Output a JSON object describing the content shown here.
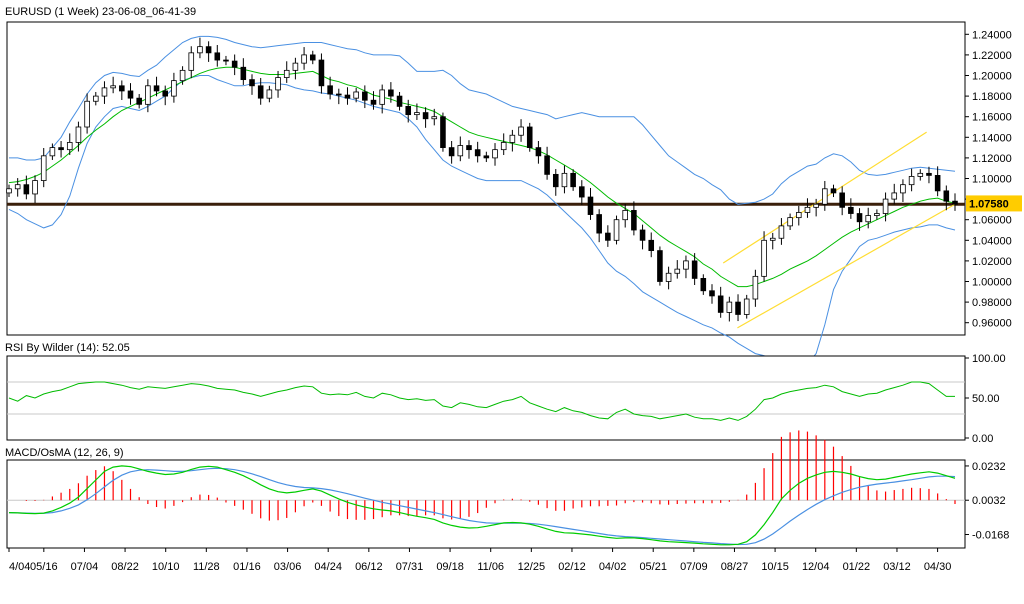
{
  "chart_data": [
    {
      "type": "candlestick",
      "title": "EURUSD (1 Week) 23-06-08_06-41-39",
      "ylim": [
        0.95,
        1.25
      ],
      "y_ticks": [
        "1.24000",
        "1.22000",
        "1.20000",
        "1.18000",
        "1.16000",
        "1.14000",
        "1.12000",
        "1.10000",
        "1.08000",
        "1.06000",
        "1.04000",
        "1.02000",
        "1.00000",
        "0.98000",
        "0.96000"
      ],
      "y_tick_values": [
        1.24,
        1.22,
        1.2,
        1.18,
        1.16,
        1.14,
        1.12,
        1.1,
        1.08,
        1.06,
        1.04,
        1.02,
        1.0,
        0.98,
        0.96
      ],
      "last_price_label": "1.07580",
      "last_price": 1.0758,
      "horizontal_line": 1.075,
      "closes": [
        1.09,
        1.094,
        1.085,
        1.098,
        1.122,
        1.13,
        1.128,
        1.135,
        1.15,
        1.175,
        1.18,
        1.188,
        1.19,
        1.185,
        1.178,
        1.172,
        1.19,
        1.185,
        1.18,
        1.195,
        1.205,
        1.222,
        1.228,
        1.222,
        1.215,
        1.214,
        1.208,
        1.196,
        1.19,
        1.178,
        1.186,
        1.198,
        1.205,
        1.212,
        1.22,
        1.215,
        1.19,
        1.182,
        1.181,
        1.178,
        1.184,
        1.176,
        1.172,
        1.186,
        1.18,
        1.17,
        1.162,
        1.164,
        1.158,
        1.16,
        1.13,
        1.122,
        1.132,
        1.128,
        1.122,
        1.12,
        1.128,
        1.135,
        1.142,
        1.15,
        1.13,
        1.122,
        1.104,
        1.092,
        1.105,
        1.092,
        1.082,
        1.065,
        1.047,
        1.04,
        1.06,
        1.069,
        1.05,
        1.04,
        1.03,
        1.0,
        1.008,
        1.012,
        1.02,
        1.003,
        0.991,
        0.986,
        0.97,
        0.98,
        0.968,
        0.983,
        1.005,
        1.04,
        1.042,
        1.054,
        1.062,
        1.067,
        1.072,
        1.075,
        1.09,
        1.086,
        1.072,
        1.066,
        1.058,
        1.064,
        1.066,
        1.08,
        1.086,
        1.094,
        1.102,
        1.105,
        1.103,
        1.088,
        1.078,
        1.075
      ],
      "bb_mid": [
        1.096,
        1.097,
        1.099,
        1.102,
        1.106,
        1.112,
        1.118,
        1.125,
        1.132,
        1.14,
        1.147,
        1.153,
        1.16,
        1.166,
        1.17,
        1.174,
        1.178,
        1.182,
        1.186,
        1.19,
        1.194,
        1.198,
        1.202,
        1.205,
        1.207,
        1.208,
        1.208,
        1.206,
        1.204,
        1.202,
        1.201,
        1.201,
        1.201,
        1.202,
        1.203,
        1.204,
        1.2,
        1.196,
        1.194,
        1.191,
        1.189,
        1.185,
        1.181,
        1.179,
        1.177,
        1.174,
        1.172,
        1.17,
        1.168,
        1.165,
        1.16,
        1.155,
        1.15,
        1.145,
        1.142,
        1.14,
        1.138,
        1.136,
        1.134,
        1.132,
        1.13,
        1.127,
        1.123,
        1.118,
        1.113,
        1.108,
        1.102,
        1.096,
        1.089,
        1.082,
        1.076,
        1.071,
        1.066,
        1.059,
        1.052,
        1.045,
        1.039,
        1.034,
        1.029,
        1.024,
        1.017,
        1.012,
        1.005,
        1.0,
        0.995,
        0.995,
        0.997,
        1.0,
        1.003,
        1.007,
        1.012,
        1.016,
        1.02,
        1.025,
        1.031,
        1.037,
        1.043,
        1.048,
        1.052,
        1.056,
        1.06,
        1.064,
        1.068,
        1.072,
        1.075,
        1.078,
        1.08,
        1.081,
        1.078,
        1.076
      ],
      "bb_up": [
        1.12,
        1.12,
        1.118,
        1.118,
        1.12,
        1.13,
        1.14,
        1.155,
        1.168,
        1.182,
        1.193,
        1.2,
        1.203,
        1.202,
        1.2,
        1.199,
        1.205,
        1.21,
        1.218,
        1.225,
        1.232,
        1.236,
        1.238,
        1.238,
        1.237,
        1.235,
        1.232,
        1.23,
        1.228,
        1.227,
        1.228,
        1.229,
        1.23,
        1.231,
        1.232,
        1.232,
        1.232,
        1.23,
        1.228,
        1.226,
        1.225,
        1.222,
        1.22,
        1.22,
        1.22,
        1.219,
        1.212,
        1.204,
        1.204,
        1.204,
        1.205,
        1.2,
        1.192,
        1.186,
        1.184,
        1.182,
        1.178,
        1.174,
        1.17,
        1.168,
        1.166,
        1.164,
        1.162,
        1.158,
        1.16,
        1.162,
        1.164,
        1.162,
        1.16,
        1.16,
        1.16,
        1.16,
        1.16,
        1.152,
        1.142,
        1.132,
        1.122,
        1.116,
        1.11,
        1.104,
        1.1,
        1.094,
        1.089,
        1.08,
        1.075,
        1.076,
        1.077,
        1.08,
        1.085,
        1.095,
        1.102,
        1.107,
        1.112,
        1.114,
        1.12,
        1.124,
        1.122,
        1.116,
        1.108,
        1.104,
        1.103,
        1.104,
        1.106,
        1.108,
        1.11,
        1.111,
        1.11,
        1.109,
        1.108,
        1.107
      ],
      "bb_low": [
        1.07,
        1.066,
        1.06,
        1.056,
        1.052,
        1.055,
        1.065,
        1.083,
        1.11,
        1.134,
        1.15,
        1.16,
        1.168,
        1.17,
        1.168,
        1.166,
        1.17,
        1.175,
        1.18,
        1.188,
        1.195,
        1.198,
        1.2,
        1.2,
        1.196,
        1.193,
        1.19,
        1.19,
        1.192,
        1.193,
        1.193,
        1.192,
        1.191,
        1.188,
        1.186,
        1.185,
        1.183,
        1.182,
        1.18,
        1.178,
        1.176,
        1.173,
        1.17,
        1.168,
        1.166,
        1.164,
        1.158,
        1.15,
        1.138,
        1.128,
        1.118,
        1.112,
        1.108,
        1.104,
        1.1,
        1.098,
        1.098,
        1.098,
        1.098,
        1.098,
        1.094,
        1.09,
        1.084,
        1.076,
        1.068,
        1.06,
        1.052,
        1.042,
        1.03,
        1.018,
        1.01,
        1.005,
        0.998,
        0.99,
        0.985,
        0.98,
        0.975,
        0.97,
        0.966,
        0.962,
        0.958,
        0.955,
        0.95,
        0.946,
        0.94,
        0.935,
        0.93,
        0.928,
        0.926,
        0.922,
        0.92,
        0.918,
        0.92,
        0.93,
        0.958,
        0.992,
        1.01,
        1.022,
        1.034,
        1.04,
        1.042,
        1.045,
        1.048,
        1.05,
        1.052,
        1.053,
        1.055,
        1.055,
        1.052,
        1.05
      ],
      "channel": {
        "upper": [
          [
            1.018,
            1.145
          ],
          [
            1.072,
            1.145
          ]
        ],
        "lower": [
          [
            0.955,
            1.075
          ],
          [
            0.958,
            1.06
          ]
        ]
      }
    },
    {
      "type": "line",
      "title": "RSI By Wilder (14): 52.05",
      "ylim": [
        0,
        100
      ],
      "y_ticks": [
        "100.00",
        "50.00",
        "0.00"
      ],
      "y_tick_values": [
        100,
        50,
        0
      ],
      "levels": [
        70,
        30
      ],
      "values": [
        50,
        46,
        53,
        50,
        55,
        58,
        60,
        64,
        68,
        69,
        70,
        70,
        68,
        66,
        63,
        61,
        64,
        63,
        62,
        64,
        66,
        68,
        67,
        65,
        62,
        61,
        60,
        57,
        55,
        52,
        55,
        58,
        60,
        63,
        65,
        64,
        56,
        54,
        55,
        54,
        57,
        52,
        50,
        56,
        54,
        50,
        48,
        49,
        47,
        48,
        40,
        38,
        44,
        42,
        39,
        38,
        42,
        46,
        48,
        52,
        44,
        40,
        36,
        33,
        38,
        34,
        32,
        28,
        25,
        24,
        32,
        36,
        30,
        28,
        27,
        24,
        26,
        28,
        30,
        26,
        24,
        24,
        22,
        25,
        22,
        27,
        36,
        48,
        50,
        55,
        58,
        60,
        62,
        63,
        66,
        64,
        58,
        55,
        52,
        55,
        56,
        60,
        63,
        66,
        70,
        70,
        68,
        60,
        52,
        52
      ]
    },
    {
      "type": "line",
      "title": "MACD/OsMA (12, 26, 9)",
      "ylim": [
        -0.0235,
        0.0255
      ],
      "y_ticks": [
        "0.0232",
        "0.0032",
        "-0.0168"
      ],
      "y_tick_values": [
        0.0232,
        0.0032,
        -0.0168
      ],
      "macd": [
        -0.004,
        -0.0042,
        -0.0045,
        -0.0046,
        -0.0043,
        -0.003,
        -0.001,
        0.0015,
        0.005,
        0.01,
        0.015,
        0.02,
        0.0225,
        0.0232,
        0.0228,
        0.0215,
        0.02,
        0.019,
        0.0182,
        0.0185,
        0.0195,
        0.0212,
        0.0225,
        0.023,
        0.0225,
        0.021,
        0.0195,
        0.0175,
        0.015,
        0.0122,
        0.0098,
        0.0082,
        0.0075,
        0.008,
        0.009,
        0.0098,
        0.0085,
        0.0062,
        0.004,
        0.002,
        0.0005,
        -0.0008,
        -0.0018,
        -0.0025,
        -0.003,
        -0.004,
        -0.0052,
        -0.0062,
        -0.007,
        -0.008,
        -0.01,
        -0.0115,
        -0.0125,
        -0.013,
        -0.0128,
        -0.012,
        -0.011,
        -0.01,
        -0.0098,
        -0.01,
        -0.0108,
        -0.012,
        -0.0135,
        -0.015,
        -0.0158,
        -0.016,
        -0.0165,
        -0.017,
        -0.0178,
        -0.0185,
        -0.019,
        -0.0188,
        -0.0188,
        -0.0192,
        -0.0198,
        -0.0205,
        -0.021,
        -0.0212,
        -0.0215,
        -0.0218,
        -0.0222,
        -0.0225,
        -0.0228,
        -0.0228,
        -0.0225,
        -0.021,
        -0.017,
        -0.011,
        -0.004,
        0.004,
        0.009,
        0.013,
        0.016,
        0.018,
        0.0195,
        0.02,
        0.0195,
        0.0185,
        0.017,
        0.0158,
        0.0152,
        0.0155,
        0.0165,
        0.0175,
        0.0185,
        0.0192,
        0.0198,
        0.019,
        0.0175,
        0.016
      ],
      "signal": [
        -0.004,
        -0.0042,
        -0.0043,
        -0.0044,
        -0.0044,
        -0.004,
        -0.003,
        -0.0015,
        0.0005,
        0.0035,
        0.007,
        0.011,
        0.0148,
        0.0178,
        0.0198,
        0.0207,
        0.021,
        0.0208,
        0.0204,
        0.02,
        0.02,
        0.0204,
        0.021,
        0.0216,
        0.0218,
        0.0216,
        0.021,
        0.02,
        0.0186,
        0.017,
        0.0152,
        0.0135,
        0.0122,
        0.0112,
        0.0106,
        0.0104,
        0.01,
        0.0092,
        0.0082,
        0.007,
        0.0057,
        0.0044,
        0.0032,
        0.002,
        0.001,
        0.0,
        -0.001,
        -0.002,
        -0.003,
        -0.004,
        -0.0052,
        -0.0064,
        -0.0076,
        -0.0086,
        -0.0094,
        -0.01,
        -0.0102,
        -0.0102,
        -0.0102,
        -0.0102,
        -0.0104,
        -0.0108,
        -0.0114,
        -0.0122,
        -0.013,
        -0.0138,
        -0.0146,
        -0.0154,
        -0.0162,
        -0.017,
        -0.0176,
        -0.018,
        -0.0183,
        -0.0186,
        -0.019,
        -0.0194,
        -0.0198,
        -0.0202,
        -0.0206,
        -0.021,
        -0.0214,
        -0.0217,
        -0.0221,
        -0.0224,
        -0.0226,
        -0.0225,
        -0.0216,
        -0.0195,
        -0.0165,
        -0.0128,
        -0.009,
        -0.0055,
        -0.0022,
        0.0008,
        0.0035,
        0.0058,
        0.0078,
        0.0094,
        0.0108,
        0.0118,
        0.0126,
        0.0132,
        0.0138,
        0.0145,
        0.0152,
        0.016,
        0.0168,
        0.0172,
        0.0172,
        0.017
      ],
      "osma_zero": 0.0032
    }
  ],
  "x_ticks": [
    {
      "label": "4/04",
      "i": 0
    },
    {
      "label": "05/16",
      "i": 6
    },
    {
      "label": "07/04",
      "i": 13
    },
    {
      "label": "08/22",
      "i": 20
    },
    {
      "label": "10/10",
      "i": 27
    },
    {
      "label": "11/28",
      "i": 34
    },
    {
      "label": "01/16",
      "i": 41
    },
    {
      "label": "03/06",
      "i": 48
    },
    {
      "label": "04/24",
      "i": 55
    },
    {
      "label": "06/12",
      "i": 62
    },
    {
      "label": "07/31",
      "i": 69
    },
    {
      "label": "09/18",
      "i": 76
    },
    {
      "label": "11/06",
      "i": 83
    },
    {
      "label": "12/25",
      "i": 90
    },
    {
      "label": "02/12",
      "i": 97
    },
    {
      "label": "04/02",
      "i": 104
    },
    {
      "label": "05/21",
      "i": 111
    },
    {
      "label": "07/09",
      "i": 118
    },
    {
      "label": "08/27",
      "i": 125
    },
    {
      "label": "10/15",
      "i": 132
    },
    {
      "label": "12/04",
      "i": 139
    },
    {
      "label": "01/22",
      "i": 146
    },
    {
      "label": "03/12",
      "i": 153
    },
    {
      "label": "04/30",
      "i": 160
    }
  ],
  "colors": {
    "bull_candle": "#ffffff",
    "bear_candle": "#000000",
    "bb_mid": "#00bb00",
    "bb_band": "#4a90e2",
    "rsi": "#00bb00",
    "macd": "#00cc00",
    "signal": "#4a90e2",
    "osma": "#ff0000",
    "channel": "#ffdd33",
    "hline": "#3a1f0a",
    "price_label_bg": "#ffcc00"
  }
}
